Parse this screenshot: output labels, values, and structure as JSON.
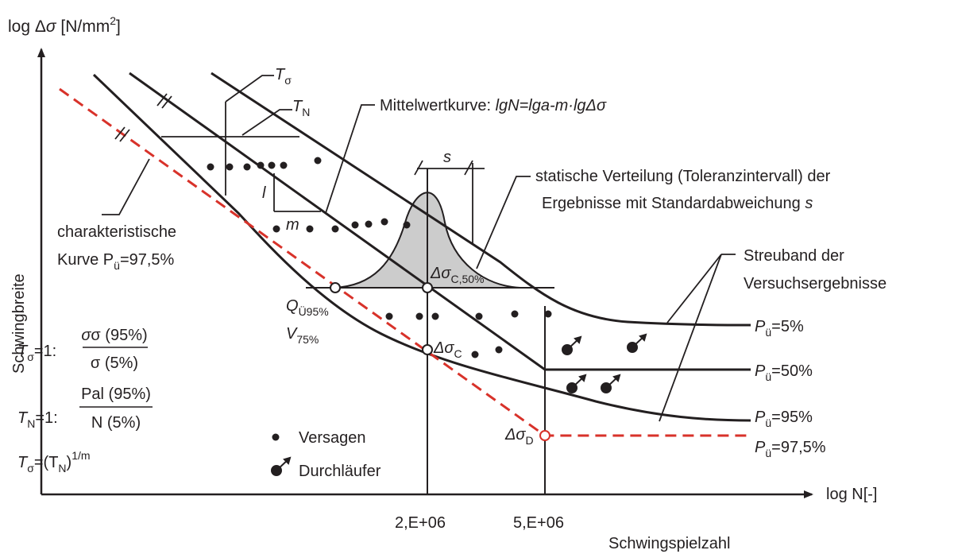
{
  "axes": {
    "y_label": "log Δσ [N/mm²]",
    "y_label_base": "log Δ",
    "y_label_sym": "σ",
    "y_label_unit": " [N/mm",
    "y_label_exp": "2",
    "y_label_close": "]",
    "x_label": "log N[-]",
    "x_title": "Schwingspielzahl",
    "y_title": "Schwingbreite",
    "x_ticks": [
      "2,E+06",
      "5,E+06"
    ]
  },
  "annotations": {
    "t_sigma": "T",
    "t_sigma_sub": "σ",
    "t_n": "T",
    "t_n_sub": "N",
    "mittelwert_prefix": "Mittelwertkurve: ",
    "mittelwert_formula": "lgN=lga-m·lgΔσ",
    "s_label": "s",
    "statische_line1": "statische Verteilung (Toleranzintervall) der",
    "statische_line2": "Ergebnisse mit Standardabweichung ",
    "statische_s": "s",
    "char_line1": "charakteristische",
    "char_line2_prefix": "Kurve P",
    "char_line2_sub": "ü",
    "char_line2_suffix": "=97,5%",
    "l_label": "l",
    "m_label": "m",
    "streuband_line1": "Streuband der",
    "streuband_line2": "Versuchsergebnisse",
    "q_label": "Q",
    "q_sub": "Ü95%",
    "v_label": "V",
    "v_sub": "75%",
    "dsc50_label": "Δσ",
    "dsc50_sub": "C,50%",
    "dsc_label": "Δσ",
    "dsc_sub": "C",
    "dsd_label": "Δσ",
    "dsd_sub": "D"
  },
  "percentiles": [
    {
      "p": "P",
      "sub": "ü",
      "val": "=5%"
    },
    {
      "p": "P",
      "sub": "ü",
      "val": "=50%"
    },
    {
      "p": "P",
      "sub": "ü",
      "val": "=95%"
    },
    {
      "p": "P",
      "sub": "ü",
      "val": "=97,5%"
    }
  ],
  "formulas": {
    "f1_lhs": "T",
    "f1_lhs_sub": "σ",
    "f1_eq": "=1:",
    "f1_num": "σ (95%)",
    "f1_den": "σ (5%)",
    "f2_lhs": "T",
    "f2_lhs_sub": "N",
    "f2_eq": "=1:",
    "f2_num": "Pal (95%)",
    "f2_den": "N (5%)",
    "f3_lhs": "T",
    "f3_lhs_sub": "σ",
    "f3_rhs": "=(T",
    "f3_rhs_sub": "N",
    "f3_close": ")",
    "f3_exp": "1/m"
  },
  "legend": {
    "versagen": "Versagen",
    "durchlaeufer": "Durchläufer"
  },
  "colors": {
    "line": "#231f20",
    "characteristic": "#d8322a",
    "bell_fill": "#cccccc"
  }
}
